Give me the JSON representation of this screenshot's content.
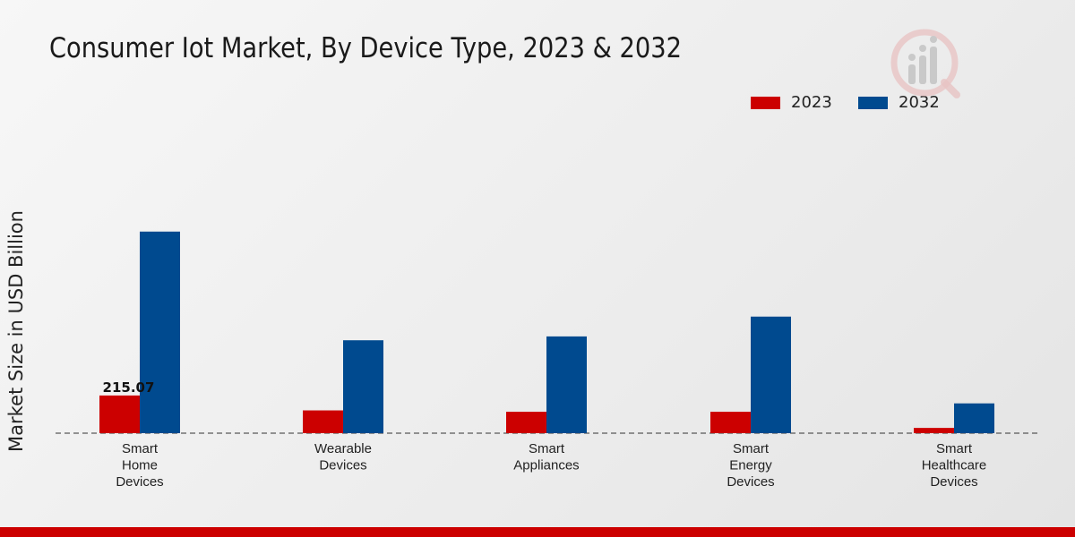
{
  "chart_data": {
    "type": "bar",
    "title": "Consumer Iot Market, By Device Type, 2023 & 2032",
    "xlabel": "",
    "ylabel": "Market Size in USD Billion",
    "categories": [
      [
        "Smart",
        "Home",
        "Devices"
      ],
      [
        "Wearable",
        "Devices"
      ],
      [
        "Smart",
        "Appliances"
      ],
      [
        "Smart",
        "Energy",
        "Devices"
      ],
      [
        "Smart",
        "Healthcare",
        "Devices"
      ]
    ],
    "series": [
      {
        "name": "2023",
        "color": "#cc0000",
        "values": [
          215.07,
          130,
          122,
          122,
          30
        ]
      },
      {
        "name": "2032",
        "color": "#004a8f",
        "values": [
          1150,
          530,
          552,
          665,
          170
        ]
      }
    ],
    "data_labels": [
      {
        "series": 0,
        "index": 0,
        "text": "215.07"
      }
    ],
    "ylim": [
      0,
      1450
    ],
    "grid": false,
    "legend_position": "top-right"
  },
  "brand": {
    "accent": "#cc0000"
  }
}
